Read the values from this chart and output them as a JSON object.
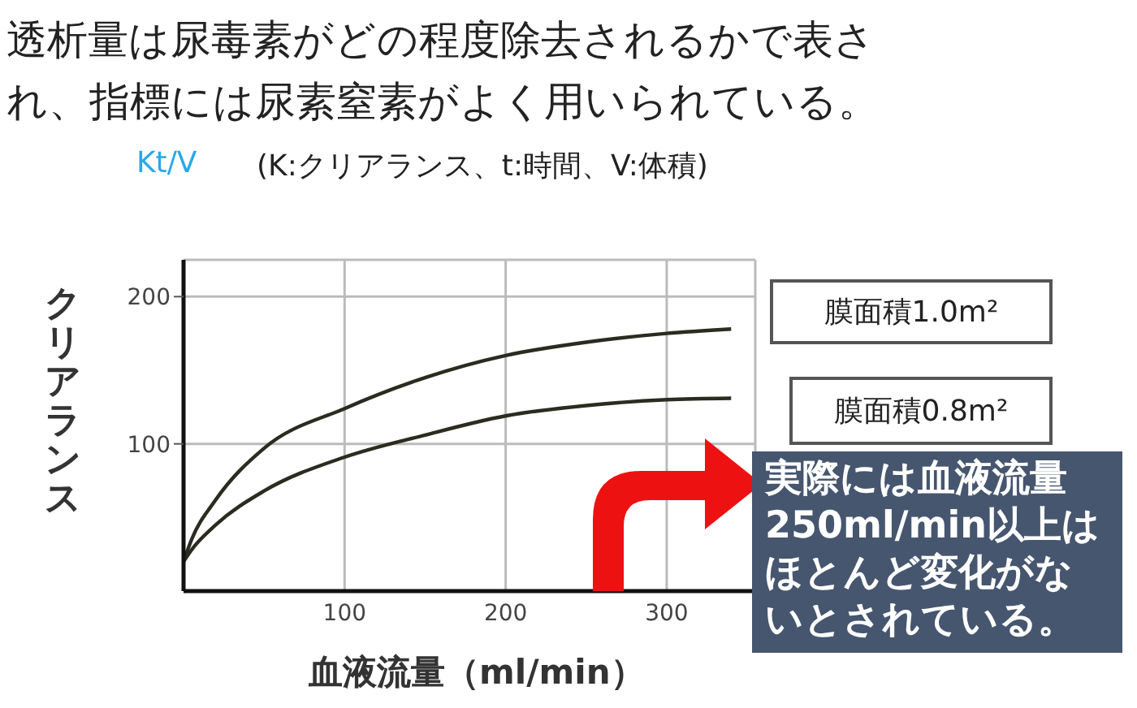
{
  "chart_data": {
    "type": "line",
    "title": "透析量は尿毒素がどの程度除去されるかで表され、指標には尿素窒素がよく用いられている。",
    "subtitle": "Kt/V",
    "xlabel": "血液流量（ml/min）",
    "ylabel": "クリアランス",
    "annotations": [
      "(K:クリアランス、t:時間、V:体積)",
      "実際には血液流量250ml/min以上はほとんど変化がないとされている。"
    ],
    "x": [
      0,
      5,
      20,
      50,
      100,
      150,
      200,
      250,
      300,
      340
    ],
    "series": [
      {
        "name": "膜面積1.0m²",
        "color": "#2b2b20",
        "values": [
          20,
          35,
          62,
          97,
          124,
          145,
          160,
          169,
          175,
          178
        ]
      },
      {
        "name": "膜面積0.8m²",
        "color": "#2b2b20",
        "values": [
          20,
          28,
          45,
          68,
          91,
          106,
          119,
          126,
          130,
          131
        ]
      }
    ],
    "xlim": [
      0,
      355
    ],
    "xticks": [
      100,
      200,
      300
    ],
    "ylim": [
      0,
      225
    ],
    "yticks": [
      100,
      200
    ],
    "grid": true,
    "legend": false
  }
}
